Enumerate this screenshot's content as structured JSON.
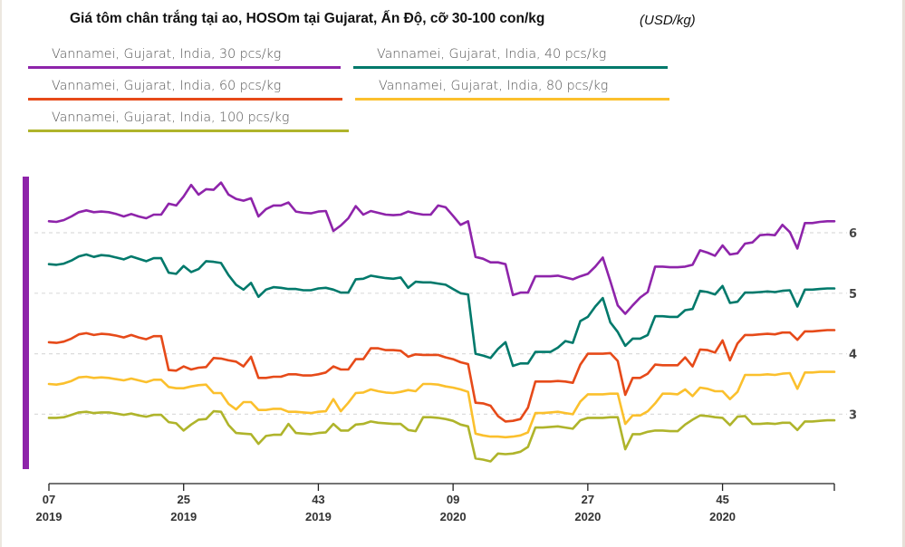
{
  "chart_data": {
    "type": "line",
    "title": "Giá tôm chân trắng tại ao, HOSOm tại Gujarat, Ấn Độ, cỡ 30-100 con/kg",
    "unit": "(USD/kg)",
    "xlabel": "",
    "ylabel": "",
    "ylim": [
      2.1,
      6.7
    ],
    "yticks": [
      "3",
      "4",
      "5",
      "6"
    ],
    "grid": "horizontal-dotted",
    "legend_position": "top-left",
    "x_start": {
      "week": 7,
      "year": 2019
    },
    "x_ticks": [
      {
        "index": 0,
        "week": "07",
        "year": "2019"
      },
      {
        "index": 18,
        "week": "25",
        "year": "2019"
      },
      {
        "index": 36,
        "week": "43",
        "year": "2019"
      },
      {
        "index": 54,
        "week": "09",
        "year": "2020"
      },
      {
        "index": 72,
        "week": "27",
        "year": "2020"
      },
      {
        "index": 90,
        "week": "45",
        "year": "2020"
      },
      {
        "index": 105,
        "week": "",
        "year": ""
      }
    ],
    "series": [
      {
        "name": "Vannamei, Gujarat, India, 30 pcs/kg",
        "color": "#8e24aa",
        "values": [
          6.19,
          6.18,
          6.21,
          6.27,
          6.34,
          6.37,
          6.34,
          6.35,
          6.34,
          6.31,
          6.27,
          6.31,
          6.27,
          6.24,
          6.3,
          6.3,
          6.48,
          6.45,
          6.6,
          6.79,
          6.63,
          6.72,
          6.71,
          6.83,
          6.63,
          6.56,
          6.53,
          6.57,
          6.27,
          6.39,
          6.45,
          6.45,
          6.5,
          6.35,
          6.33,
          6.32,
          6.35,
          6.36,
          6.03,
          6.12,
          6.24,
          6.44,
          6.3,
          6.36,
          6.33,
          6.3,
          6.29,
          6.3,
          6.35,
          6.32,
          6.3,
          6.3,
          6.45,
          6.42,
          6.28,
          6.13,
          6.19,
          5.6,
          5.57,
          5.51,
          5.51,
          5.48,
          4.97,
          5.01,
          5.01,
          5.28,
          5.28,
          5.28,
          5.29,
          5.26,
          5.23,
          5.28,
          5.32,
          5.44,
          5.59,
          5.2,
          4.8,
          4.66,
          4.8,
          4.93,
          5.02,
          5.44,
          5.44,
          5.43,
          5.43,
          5.44,
          5.47,
          5.71,
          5.67,
          5.62,
          5.79,
          5.64,
          5.66,
          5.82,
          5.84,
          5.96,
          5.97,
          5.96,
          6.13,
          6.01,
          5.74,
          6.16,
          6.16,
          6.18,
          6.19
        ]
      },
      {
        "name": "Vannamei, Gujarat, India, 40 pcs/kg",
        "color": "#00796b",
        "values": [
          5.48,
          5.47,
          5.49,
          5.54,
          5.61,
          5.64,
          5.6,
          5.63,
          5.62,
          5.59,
          5.56,
          5.61,
          5.57,
          5.53,
          5.58,
          5.58,
          5.34,
          5.32,
          5.45,
          5.35,
          5.4,
          5.53,
          5.52,
          5.5,
          5.3,
          5.14,
          5.06,
          5.17,
          4.94,
          5.06,
          5.1,
          5.09,
          5.07,
          5.07,
          5.05,
          5.05,
          5.08,
          5.09,
          5.06,
          5.01,
          5.01,
          5.23,
          5.24,
          5.29,
          5.27,
          5.25,
          5.24,
          5.26,
          5.09,
          5.19,
          5.18,
          5.18,
          5.16,
          5.14,
          5.07,
          5.0,
          4.98,
          4.0,
          3.97,
          3.93,
          4.08,
          4.19,
          3.8,
          3.84,
          3.84,
          4.03,
          4.03,
          4.03,
          4.1,
          4.21,
          4.18,
          4.54,
          4.61,
          4.78,
          4.92,
          4.52,
          4.36,
          4.13,
          4.25,
          4.25,
          4.31,
          4.62,
          4.62,
          4.61,
          4.61,
          4.72,
          4.74,
          5.04,
          5.02,
          4.98,
          5.12,
          4.84,
          4.86,
          5.01,
          5.01,
          5.02,
          5.03,
          5.02,
          5.04,
          5.05,
          4.78,
          5.06,
          5.06,
          5.07,
          5.08
        ]
      },
      {
        "name": "Vannamei, Gujarat, India, 60 pcs/kg",
        "color": "#e64a19",
        "values": [
          4.19,
          4.18,
          4.2,
          4.25,
          4.32,
          4.34,
          4.31,
          4.33,
          4.32,
          4.3,
          4.27,
          4.31,
          4.27,
          4.24,
          4.29,
          4.29,
          3.73,
          3.72,
          3.79,
          3.74,
          3.77,
          3.78,
          3.93,
          3.92,
          3.89,
          3.87,
          3.79,
          3.95,
          3.6,
          3.6,
          3.62,
          3.62,
          3.66,
          3.66,
          3.64,
          3.64,
          3.66,
          3.69,
          3.79,
          3.74,
          3.74,
          3.91,
          3.91,
          4.09,
          4.09,
          4.06,
          4.06,
          4.05,
          3.95,
          3.99,
          3.98,
          3.98,
          3.98,
          3.94,
          3.91,
          3.86,
          3.83,
          3.19,
          3.18,
          3.14,
          2.97,
          2.88,
          2.89,
          2.92,
          3.11,
          3.54,
          3.54,
          3.54,
          3.55,
          3.54,
          3.52,
          3.82,
          4.0,
          4.0,
          4.0,
          4.01,
          3.88,
          3.32,
          3.6,
          3.6,
          3.67,
          3.82,
          3.81,
          3.81,
          3.81,
          3.94,
          3.79,
          4.07,
          4.06,
          4.02,
          4.22,
          3.89,
          4.17,
          4.31,
          4.31,
          4.32,
          4.33,
          4.32,
          4.35,
          4.35,
          4.23,
          4.37,
          4.37,
          4.38,
          4.39
        ]
      },
      {
        "name": "Vannamei, Gujarat, India, 80 pcs/kg",
        "color": "#fbc02d",
        "values": [
          3.5,
          3.49,
          3.51,
          3.55,
          3.61,
          3.62,
          3.6,
          3.61,
          3.6,
          3.58,
          3.56,
          3.59,
          3.56,
          3.53,
          3.57,
          3.57,
          3.45,
          3.43,
          3.43,
          3.46,
          3.48,
          3.49,
          3.35,
          3.35,
          3.17,
          3.08,
          3.2,
          3.2,
          3.07,
          3.07,
          3.09,
          3.09,
          3.04,
          3.04,
          3.03,
          3.02,
          3.04,
          3.05,
          3.25,
          3.05,
          3.19,
          3.35,
          3.36,
          3.41,
          3.38,
          3.36,
          3.35,
          3.37,
          3.4,
          3.38,
          3.5,
          3.5,
          3.49,
          3.46,
          3.44,
          3.41,
          3.37,
          2.68,
          2.65,
          2.63,
          2.63,
          2.62,
          2.63,
          2.65,
          2.7,
          3.02,
          3.02,
          3.03,
          3.04,
          3.02,
          3.0,
          3.21,
          3.33,
          3.33,
          3.33,
          3.34,
          3.34,
          2.84,
          2.98,
          2.98,
          3.05,
          3.18,
          3.34,
          3.34,
          3.33,
          3.41,
          3.3,
          3.44,
          3.42,
          3.38,
          3.38,
          3.25,
          3.37,
          3.65,
          3.65,
          3.65,
          3.66,
          3.65,
          3.67,
          3.68,
          3.42,
          3.69,
          3.69,
          3.7,
          3.7
        ]
      },
      {
        "name": "Vannamei, Gujarat, India, 100 pcs/kg",
        "color": "#afb42b",
        "values": [
          2.94,
          2.94,
          2.95,
          2.99,
          3.03,
          3.04,
          3.02,
          3.03,
          3.03,
          3.01,
          2.99,
          3.01,
          2.98,
          2.96,
          2.99,
          2.99,
          2.87,
          2.85,
          2.73,
          2.83,
          2.91,
          2.92,
          3.05,
          3.04,
          2.82,
          2.69,
          2.68,
          2.67,
          2.51,
          2.64,
          2.66,
          2.66,
          2.84,
          2.69,
          2.68,
          2.67,
          2.69,
          2.7,
          2.84,
          2.73,
          2.73,
          2.83,
          2.84,
          2.88,
          2.86,
          2.85,
          2.84,
          2.84,
          2.74,
          2.72,
          2.95,
          2.95,
          2.94,
          2.92,
          2.89,
          2.83,
          2.8,
          2.27,
          2.25,
          2.22,
          2.35,
          2.34,
          2.35,
          2.38,
          2.46,
          2.78,
          2.78,
          2.79,
          2.8,
          2.78,
          2.76,
          2.9,
          2.94,
          2.94,
          2.94,
          2.95,
          2.95,
          2.42,
          2.67,
          2.67,
          2.71,
          2.73,
          2.73,
          2.72,
          2.72,
          2.83,
          2.91,
          2.98,
          2.97,
          2.95,
          2.94,
          2.82,
          2.96,
          2.97,
          2.84,
          2.84,
          2.85,
          2.84,
          2.86,
          2.86,
          2.74,
          2.88,
          2.88,
          2.89,
          2.9
        ]
      }
    ]
  }
}
